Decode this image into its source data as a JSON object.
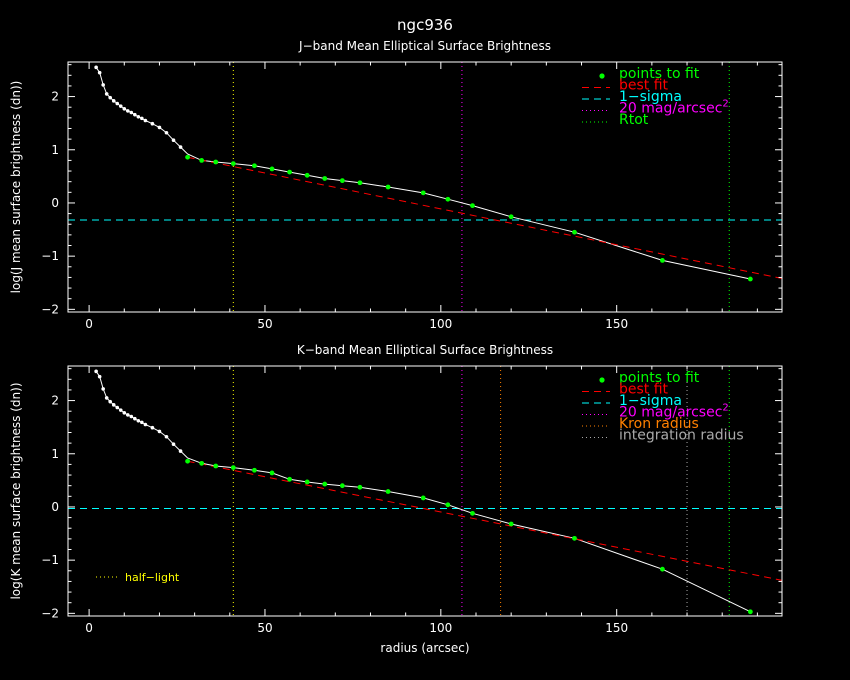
{
  "figure_title": "ngc936",
  "xlabel": "radius (arcsec)",
  "colors": {
    "background": "#000000",
    "axes": "#ffffff",
    "profile": "#ffffff",
    "points_to_fit": "#00ff00",
    "best_fit": "#ff0000",
    "one_sigma": "#00ffff",
    "mag20": "#ff00ff",
    "rtot": "#00ff00",
    "half_light": "#ffff00",
    "kron": "#ff8000",
    "integration": "#aaaaaa"
  },
  "chart_data": [
    {
      "type": "line",
      "title": "J−band Mean Elliptical Surface Brightness",
      "ylabel": "log(J mean surface brightness (dn))",
      "xlim": [
        -6,
        197
      ],
      "ylim": [
        -2.05,
        2.65
      ],
      "x_ticks": [
        0,
        50,
        100,
        150
      ],
      "y_ticks": [
        2,
        1,
        0,
        -1,
        -2
      ],
      "y_tick_labels": [
        "2",
        "1",
        "0",
        "−1",
        "−2"
      ],
      "profile": {
        "x": [
          2,
          3,
          4,
          5,
          6,
          7,
          8,
          9,
          10,
          11,
          12,
          13,
          14,
          15,
          16,
          18,
          20,
          22,
          24,
          26,
          28,
          32,
          36,
          41,
          47,
          52,
          57,
          62,
          67,
          72,
          77,
          85,
          95,
          102,
          109,
          120,
          138,
          163,
          188
        ],
        "y": [
          2.55,
          2.45,
          2.22,
          2.05,
          1.98,
          1.92,
          1.87,
          1.82,
          1.77,
          1.73,
          1.7,
          1.66,
          1.62,
          1.59,
          1.55,
          1.49,
          1.42,
          1.32,
          1.18,
          1.05,
          0.92,
          0.8,
          0.77,
          0.74,
          0.7,
          0.64,
          0.58,
          0.52,
          0.46,
          0.42,
          0.38,
          0.3,
          0.19,
          0.07,
          -0.05,
          -0.26,
          -0.55,
          -1.08,
          -1.43
        ]
      },
      "points_to_fit": {
        "x": [
          28,
          32,
          36,
          41,
          47,
          52,
          57,
          62,
          67,
          72,
          77,
          85,
          95,
          102,
          109,
          120,
          138,
          163,
          188
        ],
        "y": [
          0.86,
          0.8,
          0.77,
          0.74,
          0.7,
          0.64,
          0.58,
          0.52,
          0.46,
          0.42,
          0.38,
          0.3,
          0.19,
          0.07,
          -0.05,
          -0.26,
          -0.55,
          -1.08,
          -1.43
        ]
      },
      "best_fit": {
        "x": [
          28,
          197
        ],
        "y": [
          0.86,
          -1.42
        ]
      },
      "one_sigma_y": -0.32,
      "mag20_x": 106,
      "rtot_x": 182,
      "half_light_x": 41,
      "legend": [
        {
          "label": "points to fit",
          "style": "dot",
          "color": "#00ff00"
        },
        {
          "label": "best fit",
          "style": "dash",
          "color": "#ff0000"
        },
        {
          "label": "1−sigma",
          "style": "dash",
          "color": "#00ffff"
        },
        {
          "label": "20 mag/arcsec",
          "sup": "2",
          "style": "dot-line",
          "color": "#ff00ff"
        },
        {
          "label": "Rtot",
          "style": "dot-line",
          "color": "#00ff00"
        }
      ]
    },
    {
      "type": "line",
      "title": "K−band Mean Elliptical Surface Brightness",
      "ylabel": "log(K mean surface brightness (dn))",
      "xlim": [
        -6,
        197
      ],
      "ylim": [
        -2.05,
        2.65
      ],
      "x_ticks": [
        0,
        50,
        100,
        150
      ],
      "y_ticks": [
        2,
        1,
        0,
        -1,
        -2
      ],
      "y_tick_labels": [
        "2",
        "1",
        "0",
        "−1",
        "−2"
      ],
      "profile": {
        "x": [
          2,
          3,
          4,
          5,
          6,
          7,
          8,
          9,
          10,
          11,
          12,
          13,
          14,
          15,
          16,
          18,
          20,
          22,
          24,
          26,
          28,
          32,
          36,
          41,
          47,
          52,
          57,
          62,
          67,
          72,
          77,
          85,
          95,
          102,
          109,
          120,
          138,
          163,
          188
        ],
        "y": [
          2.55,
          2.45,
          2.22,
          2.05,
          1.98,
          1.92,
          1.87,
          1.82,
          1.77,
          1.73,
          1.7,
          1.66,
          1.62,
          1.59,
          1.55,
          1.49,
          1.42,
          1.32,
          1.18,
          1.05,
          0.92,
          0.82,
          0.77,
          0.74,
          0.69,
          0.64,
          0.52,
          0.47,
          0.43,
          0.4,
          0.37,
          0.29,
          0.17,
          0.04,
          -0.12,
          -0.32,
          -0.59,
          -1.17,
          -1.97
        ]
      },
      "points_to_fit": {
        "x": [
          28,
          32,
          36,
          41,
          47,
          52,
          57,
          62,
          67,
          72,
          77,
          85,
          95,
          102,
          109,
          120,
          138,
          163,
          188
        ],
        "y": [
          0.86,
          0.82,
          0.77,
          0.74,
          0.69,
          0.64,
          0.52,
          0.47,
          0.43,
          0.4,
          0.37,
          0.29,
          0.17,
          0.04,
          -0.12,
          -0.32,
          -0.59,
          -1.17,
          -1.97
        ]
      },
      "best_fit": {
        "x": [
          28,
          197
        ],
        "y": [
          0.86,
          -1.38
        ]
      },
      "one_sigma_y": -0.03,
      "mag20_x": 106,
      "kron_x": 117,
      "integration_x": 170,
      "rtot_x": 182,
      "half_light_x": 41,
      "half_light_label": "half−light",
      "legend": [
        {
          "label": "points to fit",
          "style": "dot",
          "color": "#00ff00"
        },
        {
          "label": "best fit",
          "style": "dash",
          "color": "#ff0000"
        },
        {
          "label": "1−sigma",
          "style": "dash",
          "color": "#00ffff"
        },
        {
          "label": "20 mag/arcsec",
          "sup": "2",
          "style": "dot-line",
          "color": "#ff00ff"
        },
        {
          "label": "Kron radius",
          "style": "dot-line",
          "color": "#ff8000"
        },
        {
          "label": "integration radius",
          "style": "dot-line",
          "color": "#aaaaaa"
        }
      ]
    }
  ]
}
